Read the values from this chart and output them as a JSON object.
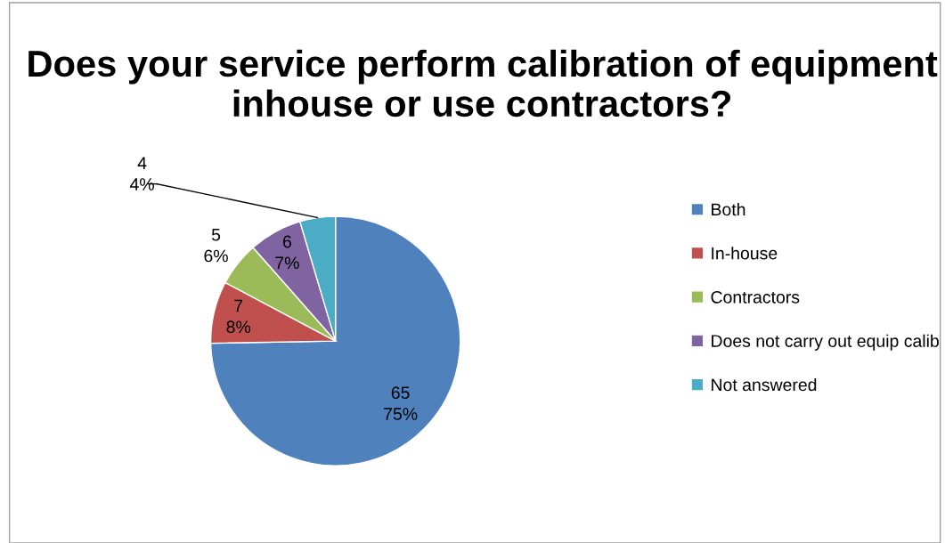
{
  "chart_data": {
    "type": "pie",
    "title": "Does your service perform calibration of equipment inhouse or use contractors?",
    "categories": [
      "Both",
      "In-house",
      "Contractors",
      "Does not carry out equip calib",
      "Not answered"
    ],
    "values": [
      65,
      7,
      5,
      6,
      4
    ],
    "colors": [
      "#4f81bd",
      "#c0504d",
      "#9bbb59",
      "#8064a2",
      "#4bacc6"
    ],
    "value_labels": [
      "65\n75%",
      "7\n8%",
      "5\n6%",
      "6\n7%",
      "4\n4%"
    ],
    "legend": "right"
  }
}
